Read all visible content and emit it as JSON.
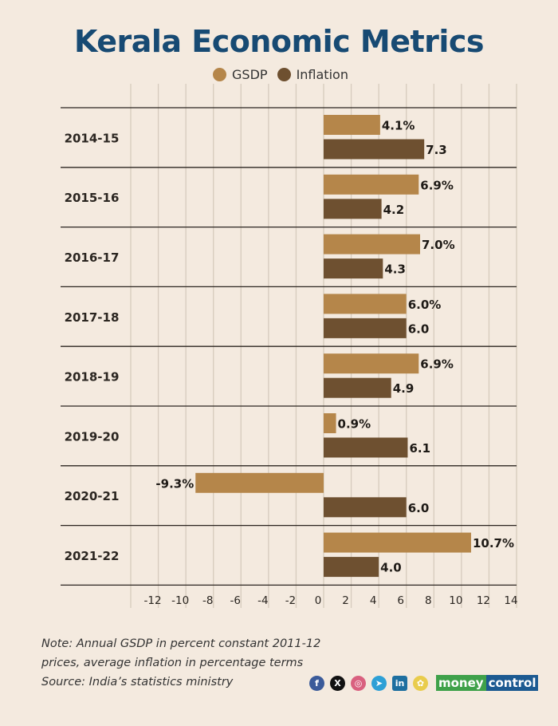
{
  "title": "Kerala Economic Metrics",
  "legend": [
    {
      "label": "GSDP",
      "color": "#b5864a"
    },
    {
      "label": "Inflation",
      "color": "#6e5030"
    }
  ],
  "chart_data": {
    "type": "bar",
    "orientation": "horizontal",
    "title": "Kerala Economic Metrics",
    "categories": [
      "2014-15",
      "2015-16",
      "2016-17",
      "2017-18",
      "2018-19",
      "2019-20",
      "2020-21",
      "2021-22"
    ],
    "series": [
      {
        "name": "GSDP",
        "color": "#b5864a",
        "values": [
          4.1,
          6.9,
          7.0,
          6.0,
          6.9,
          0.9,
          -9.3,
          10.7
        ],
        "labels": [
          "4.1%",
          "6.9%",
          "7.0%",
          "6.0%",
          "6.9%",
          "0.9%",
          "-9.3%",
          "10.7%"
        ]
      },
      {
        "name": "Inflation",
        "color": "#6e5030",
        "values": [
          7.3,
          4.2,
          4.3,
          6.0,
          4.9,
          6.1,
          6.0,
          4.0
        ],
        "labels": [
          "7.3",
          "4.2",
          "4.3",
          "6.0",
          "4.9",
          "6.1",
          "6.0",
          "4.0"
        ]
      }
    ],
    "xlim": [
      -14,
      14
    ],
    "xticks": [
      -12,
      -10,
      -8,
      -6,
      -4,
      -2,
      0,
      2,
      4,
      6,
      8,
      10,
      12,
      14
    ],
    "xlabel": "",
    "ylabel": "",
    "grid": true,
    "legend_position": "top-center"
  },
  "footer": {
    "note_lines": [
      "Note: Annual GSDP in percent constant 2011-12",
      "prices, average inflation in percentage terms",
      "Source: India’s statistics ministry"
    ],
    "social_icons": [
      {
        "name": "facebook-icon",
        "glyph": "f",
        "color": "#3b5b9a"
      },
      {
        "name": "x-icon",
        "glyph": "X",
        "color": "#111111"
      },
      {
        "name": "instagram-icon",
        "glyph": "◎",
        "color": "#d9607f"
      },
      {
        "name": "telegram-icon",
        "glyph": "➤",
        "color": "#2ea0d6"
      },
      {
        "name": "linkedin-icon",
        "glyph": "in",
        "color": "#1e6fa0"
      },
      {
        "name": "snapchat-icon",
        "glyph": "✿",
        "color": "#e9cc4c"
      }
    ],
    "brand_part1": "money",
    "brand_part2": "control"
  }
}
